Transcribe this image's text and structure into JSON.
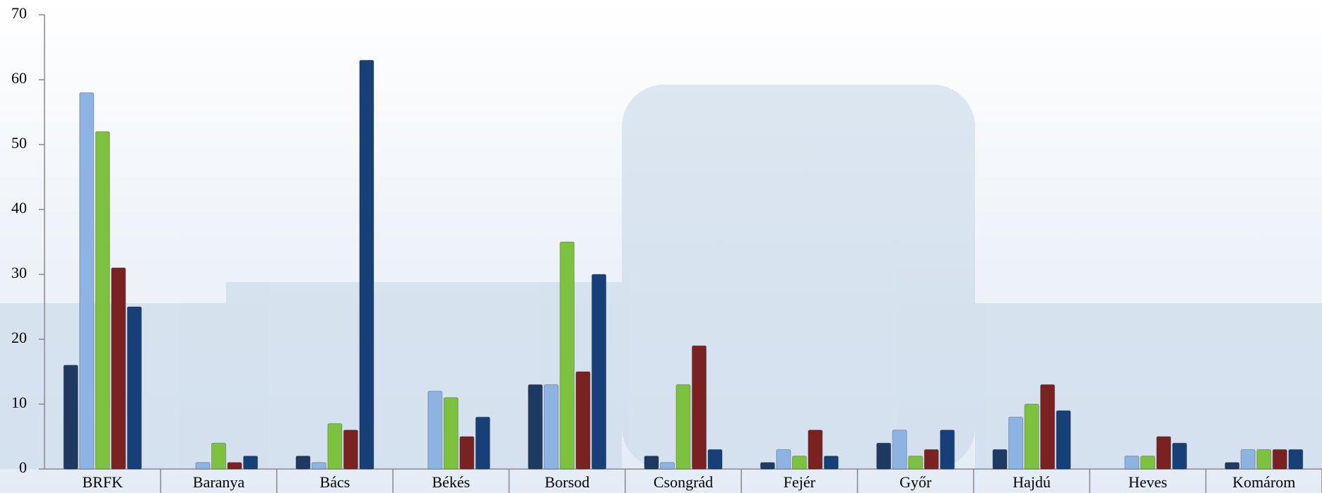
{
  "chart_data": {
    "type": "bar",
    "categories": [
      "BRFK",
      "Baranya",
      "Bács",
      "Békés",
      "Borsod",
      "Csongrád",
      "Fejér",
      "Győr",
      "Hajdú",
      "Heves",
      "Komárom"
    ],
    "series": [
      {
        "color": "#1f3a60",
        "values": [
          16,
          0,
          2,
          0,
          13,
          2,
          1,
          4,
          3,
          0,
          1
        ]
      },
      {
        "color": "#8db3e2",
        "values": [
          58,
          1,
          1,
          12,
          13,
          1,
          3,
          6,
          8,
          2,
          3
        ]
      },
      {
        "color": "#7dc23e",
        "values": [
          52,
          4,
          7,
          11,
          35,
          13,
          2,
          2,
          10,
          2,
          3
        ]
      },
      {
        "color": "#7a2222",
        "values": [
          31,
          1,
          6,
          5,
          15,
          19,
          6,
          3,
          13,
          5,
          3
        ]
      },
      {
        "color": "#173f78",
        "values": [
          25,
          2,
          63,
          8,
          30,
          3,
          2,
          6,
          9,
          4,
          3
        ]
      }
    ],
    "ylim": [
      0,
      70
    ],
    "yticks": [
      0,
      10,
      20,
      30,
      40,
      50,
      60,
      70
    ],
    "grid": false
  }
}
